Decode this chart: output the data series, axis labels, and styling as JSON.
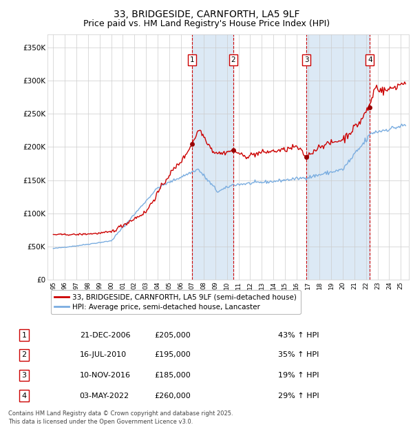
{
  "title": "33, BRIDGESIDE, CARNFORTH, LA5 9LF",
  "subtitle": "Price paid vs. HM Land Registry's House Price Index (HPI)",
  "legend_line1": "33, BRIDGESIDE, CARNFORTH, LA5 9LF (semi-detached house)",
  "legend_line2": "HPI: Average price, semi-detached house, Lancaster",
  "footnote1": "Contains HM Land Registry data © Crown copyright and database right 2025.",
  "footnote2": "This data is licensed under the Open Government Licence v3.0.",
  "transactions": [
    {
      "num": 1,
      "date": "21-DEC-2006",
      "price": 205000,
      "hpi_pct": "43% ↑ HPI",
      "x_year": 2006.97
    },
    {
      "num": 2,
      "date": "16-JUL-2010",
      "price": 195000,
      "hpi_pct": "35% ↑ HPI",
      "x_year": 2010.54
    },
    {
      "num": 3,
      "date": "10-NOV-2016",
      "price": 185000,
      "hpi_pct": "19% ↑ HPI",
      "x_year": 2016.86
    },
    {
      "num": 4,
      "date": "03-MAY-2022",
      "price": 260000,
      "hpi_pct": "29% ↑ HPI",
      "x_year": 2022.33
    }
  ],
  "red_line_color": "#cc0000",
  "blue_line_color": "#7aade0",
  "shade_color": "#dce9f5",
  "dot_color": "#990000",
  "grid_color": "#cccccc",
  "bg_color": "#ffffff",
  "title_fontsize": 10,
  "subtitle_fontsize": 9,
  "ylim": [
    0,
    370000
  ],
  "xlim_start": 1994.5,
  "xlim_end": 2025.7,
  "yticks": [
    0,
    50000,
    100000,
    150000,
    200000,
    250000,
    300000,
    350000
  ],
  "ytick_labels": [
    "£0",
    "£50K",
    "£100K",
    "£150K",
    "£200K",
    "£250K",
    "£300K",
    "£350K"
  ]
}
